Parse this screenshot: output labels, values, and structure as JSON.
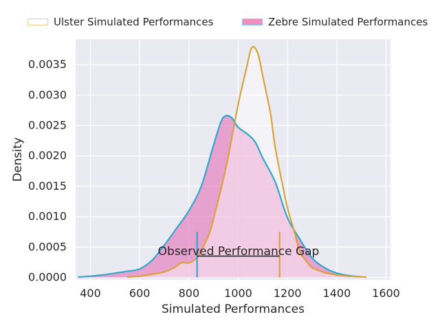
{
  "figure_background": "#ffffff",
  "legend": {
    "items": [
      {
        "label": "Ulster Simulated Performances",
        "swatch_fill": "#ffffff",
        "swatch_edge": "#eec889"
      },
      {
        "label": "Zebre Simulated Performances",
        "swatch_fill": "#ef8ec0",
        "swatch_edge": "#8bcde7"
      }
    ]
  },
  "chart_data": {
    "type": "area",
    "subtype": "kde-density",
    "title": "",
    "xlabel": "Simulated Performances",
    "ylabel": "Density",
    "xlim": [
      340,
      1618
    ],
    "ylim": [
      -4e-05,
      0.00392
    ],
    "grid": true,
    "legend_position": "top",
    "plot_background": "#eaeaf2",
    "grid_color": "#ffffff",
    "tick_color": "#262626",
    "x_ticks": [
      400,
      600,
      800,
      1000,
      1200,
      1400,
      1600
    ],
    "x_tick_labels": [
      "400",
      "600",
      "800",
      "1000",
      "1200",
      "1400",
      "1600"
    ],
    "y_ticks": [
      0.0,
      0.0005,
      0.001,
      0.0015,
      0.002,
      0.0025,
      0.003,
      0.0035
    ],
    "y_tick_labels": [
      "0.0000",
      "0.0005",
      "0.0010",
      "0.0015",
      "0.0020",
      "0.0025",
      "0.0030",
      "0.0035"
    ],
    "series": [
      {
        "name": "Zebre Simulated Performances",
        "line_color": "#31a6cb",
        "fill_color": "rgba(229,112,181,0.60)",
        "peak": {
          "x": 950,
          "density": 0.00266
        },
        "points": [
          [
            350,
            5e-06
          ],
          [
            400,
            2e-05
          ],
          [
            450,
            4e-05
          ],
          [
            500,
            7e-05
          ],
          [
            550,
            0.0001
          ],
          [
            600,
            0.00014
          ],
          [
            650,
            0.00028
          ],
          [
            700,
            0.00053
          ],
          [
            750,
            0.00081
          ],
          [
            800,
            0.0011
          ],
          [
            850,
            0.0015
          ],
          [
            900,
            0.00218
          ],
          [
            930,
            0.00256
          ],
          [
            950,
            0.00266
          ],
          [
            975,
            0.00262
          ],
          [
            1000,
            0.00247
          ],
          [
            1040,
            0.00235
          ],
          [
            1070,
            0.00222
          ],
          [
            1100,
            0.00196
          ],
          [
            1150,
            0.00157
          ],
          [
            1200,
            0.00098
          ],
          [
            1250,
            0.00063
          ],
          [
            1300,
            0.00032
          ],
          [
            1350,
            0.00016
          ],
          [
            1400,
            7e-05
          ],
          [
            1450,
            3e-05
          ],
          [
            1500,
            1e-05
          ]
        ]
      },
      {
        "name": "Ulster Simulated Performances",
        "line_color": "#d9a33c",
        "fill_color": "rgba(255,255,255,0.45)",
        "peak": {
          "x": 1055,
          "density": 0.00378
        },
        "points": [
          [
            550,
            5e-06
          ],
          [
            600,
            2e-05
          ],
          [
            650,
            5e-05
          ],
          [
            700,
            9e-05
          ],
          [
            740,
            0.00016
          ],
          [
            770,
            0.00024
          ],
          [
            800,
            0.00024
          ],
          [
            830,
            0.00031
          ],
          [
            850,
            0.00044
          ],
          [
            880,
            0.0007
          ],
          [
            900,
            0.00097
          ],
          [
            950,
            0.0018
          ],
          [
            1000,
            0.00285
          ],
          [
            1030,
            0.00338
          ],
          [
            1055,
            0.00378
          ],
          [
            1080,
            0.00368
          ],
          [
            1100,
            0.0033
          ],
          [
            1130,
            0.00272
          ],
          [
            1150,
            0.00214
          ],
          [
            1180,
            0.00152
          ],
          [
            1200,
            0.00114
          ],
          [
            1230,
            0.00072
          ],
          [
            1250,
            0.00042
          ],
          [
            1280,
            0.00025
          ],
          [
            1300,
            0.00016
          ],
          [
            1350,
            8e-05
          ],
          [
            1400,
            4e-05
          ],
          [
            1450,
            2e-05
          ],
          [
            1520,
            5e-06
          ]
        ]
      }
    ],
    "vlines": [
      {
        "x": 833,
        "y0": 0,
        "y1": 0.00075,
        "color": "#31a6cb"
      },
      {
        "x": 1168,
        "y0": 0,
        "y1": 0.00075,
        "color": "#d9a33c"
      }
    ],
    "gap_line": {
      "x1": 833,
      "x2": 1168,
      "y": 0.00035,
      "color": "#1a1a1a"
    },
    "annotation": {
      "text": "Observed Performance Gap",
      "x": 1000,
      "y": 0.00041,
      "color": "#262626"
    }
  }
}
